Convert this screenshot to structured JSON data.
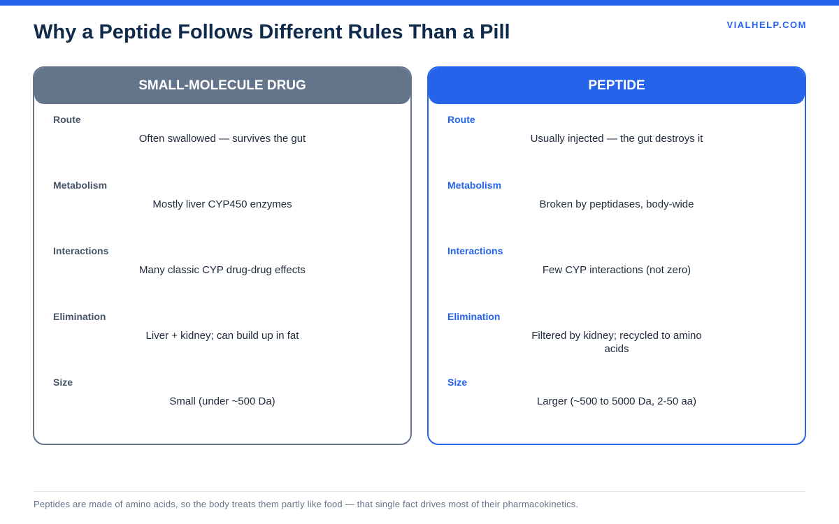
{
  "header": {
    "title": "Why a Peptide Follows Different Rules Than a Pill",
    "brand": "VIALHELP.COM"
  },
  "colors": {
    "accent": "#2563eb",
    "slate": "#64748b",
    "title": "#0f2a4a"
  },
  "left_card": {
    "title": "SMALL-MOLECULE DRUG",
    "rows": [
      {
        "label": "Route",
        "value": "Often swallowed — survives the gut"
      },
      {
        "label": "Metabolism",
        "value": "Mostly liver CYP450 enzymes"
      },
      {
        "label": "Interactions",
        "value": "Many classic CYP drug-drug effects"
      },
      {
        "label": "Elimination",
        "value": "Liver + kidney; can build up in fat"
      },
      {
        "label": "Size",
        "value": "Small (under ~500 Da)"
      }
    ]
  },
  "right_card": {
    "title": "PEPTIDE",
    "rows": [
      {
        "label": "Route",
        "value": "Usually injected — the gut destroys it"
      },
      {
        "label": "Metabolism",
        "value": "Broken by peptidases, body-wide"
      },
      {
        "label": "Interactions",
        "value": "Few CYP interactions (not zero)"
      },
      {
        "label": "Elimination",
        "value": "Filtered by kidney; recycled to amino acids"
      },
      {
        "label": "Size",
        "value": "Larger (~500 to 5000 Da, 2-50 aa)"
      }
    ]
  },
  "footer": {
    "note": "Peptides are made of amino acids, so the body treats them partly like food — that single fact drives most of their pharmacokinetics."
  }
}
